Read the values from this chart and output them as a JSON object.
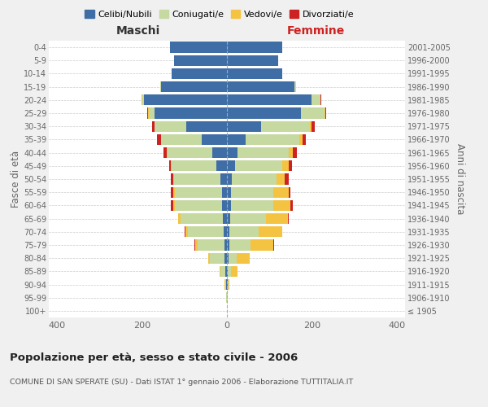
{
  "age_groups": [
    "100+",
    "95-99",
    "90-94",
    "85-89",
    "80-84",
    "75-79",
    "70-74",
    "65-69",
    "60-64",
    "55-59",
    "50-54",
    "45-49",
    "40-44",
    "35-39",
    "30-34",
    "25-29",
    "20-24",
    "15-19",
    "10-14",
    "5-9",
    "0-4"
  ],
  "birth_years": [
    "≤ 1905",
    "1906-1910",
    "1911-1915",
    "1916-1920",
    "1921-1925",
    "1926-1930",
    "1931-1935",
    "1936-1940",
    "1941-1945",
    "1946-1950",
    "1951-1955",
    "1956-1960",
    "1961-1965",
    "1966-1970",
    "1971-1975",
    "1976-1980",
    "1981-1985",
    "1986-1990",
    "1991-1995",
    "1996-2000",
    "2001-2005"
  ],
  "male": {
    "celibi": [
      0,
      0,
      1,
      3,
      5,
      5,
      8,
      10,
      12,
      12,
      15,
      25,
      35,
      60,
      95,
      170,
      195,
      155,
      130,
      125,
      135
    ],
    "coniugati": [
      0,
      1,
      3,
      12,
      35,
      65,
      85,
      100,
      110,
      110,
      110,
      105,
      105,
      95,
      75,
      15,
      5,
      2,
      0,
      0,
      0
    ],
    "vedovi": [
      0,
      0,
      1,
      2,
      4,
      5,
      5,
      5,
      5,
      5,
      2,
      2,
      2,
      1,
      1,
      1,
      1,
      0,
      0,
      0,
      0
    ],
    "divorziati": [
      0,
      0,
      0,
      0,
      0,
      1,
      1,
      1,
      5,
      5,
      5,
      5,
      8,
      8,
      5,
      2,
      1,
      0,
      0,
      0,
      0
    ]
  },
  "female": {
    "nubili": [
      0,
      0,
      1,
      2,
      3,
      5,
      5,
      8,
      10,
      10,
      12,
      20,
      25,
      45,
      80,
      175,
      200,
      160,
      130,
      120,
      130
    ],
    "coniugate": [
      0,
      1,
      2,
      8,
      20,
      50,
      70,
      85,
      100,
      100,
      105,
      110,
      120,
      125,
      115,
      55,
      20,
      3,
      0,
      0,
      0
    ],
    "vedove": [
      0,
      1,
      3,
      15,
      30,
      55,
      55,
      50,
      40,
      35,
      20,
      15,
      10,
      8,
      5,
      2,
      1,
      0,
      0,
      0,
      0
    ],
    "divorziate": [
      0,
      0,
      0,
      0,
      0,
      1,
      1,
      2,
      5,
      5,
      8,
      8,
      10,
      8,
      8,
      2,
      1,
      0,
      0,
      0,
      0
    ]
  },
  "colors": {
    "celibi": "#3f6ea6",
    "coniugati": "#c5d9a0",
    "vedovi": "#f5c342",
    "divorziati": "#cc2222"
  },
  "xlim": 420,
  "title": "Popolazione per età, sesso e stato civile - 2006",
  "subtitle": "COMUNE DI SAN SPERATE (SU) - Dati ISTAT 1° gennaio 2006 - Elaborazione TUTTITALIA.IT",
  "ylabel_left": "Fasce di età",
  "ylabel_right": "Anni di nascita",
  "xlabel_left": "Maschi",
  "xlabel_right": "Femmine",
  "legend_labels": [
    "Celibi/Nubili",
    "Coniugati/e",
    "Vedovi/e",
    "Divorziati/e"
  ],
  "background_color": "#f0f0f0",
  "plot_bg_color": "#ffffff"
}
